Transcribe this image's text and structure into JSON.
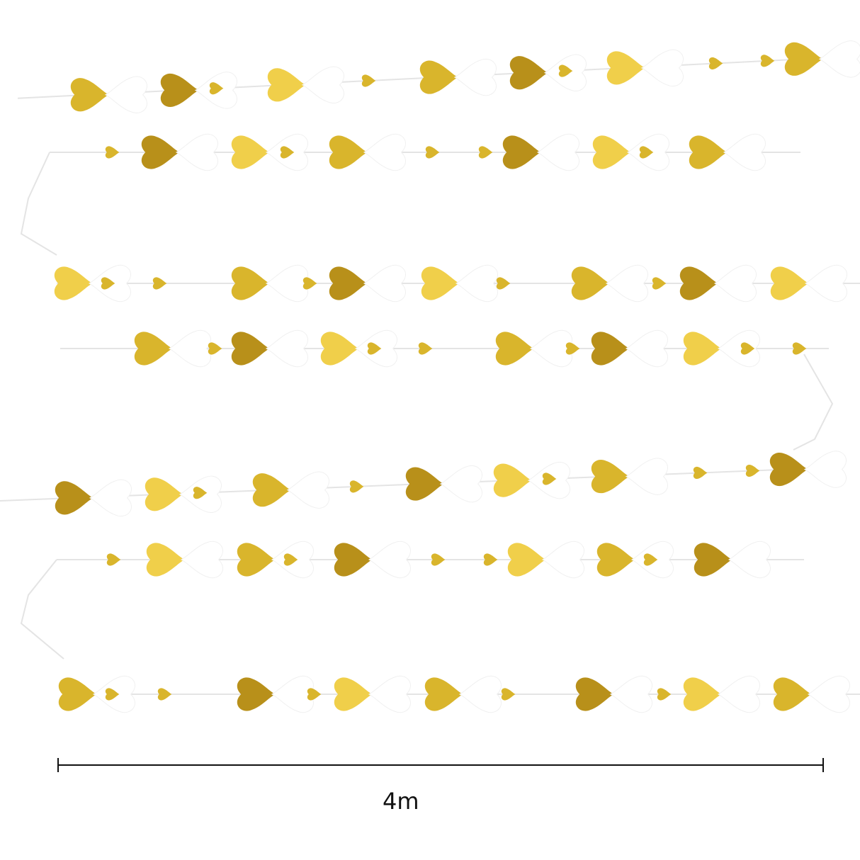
{
  "product": {
    "colors": {
      "gold": "#d9b52c",
      "gold_dark": "#b8901a",
      "gold_light": "#f0cf4a",
      "white_heart": "#ffffff",
      "string": "#e4e4e4"
    },
    "icon": "heart-icon"
  },
  "measurement": {
    "length_label": "4m"
  }
}
